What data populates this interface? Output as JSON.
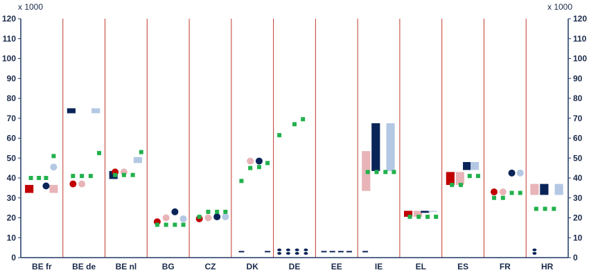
{
  "colors": {
    "axis": "#1f3864",
    "separator": "#c0392b",
    "dark_red": "#c00000",
    "light_red": "#e8b4b8",
    "dark_blue": "#0a2458",
    "light_blue": "#b4c8e4",
    "green": "#22b14c"
  },
  "chart_data": {
    "type": "scatter",
    "unit_left": "x 1000",
    "unit_right": "x 1000",
    "ylim": [
      0,
      120
    ],
    "yticks": [
      0,
      10,
      20,
      30,
      40,
      50,
      60,
      70,
      80,
      90,
      100,
      110,
      120
    ],
    "categories": [
      "BE fr",
      "BE de",
      "BE nl",
      "BG",
      "CZ",
      "DK",
      "DE",
      "EE",
      "IE",
      "EL",
      "ES",
      "FR",
      "HR"
    ],
    "ranges": [
      {
        "cat": 0,
        "pos": "left",
        "shade": "dark_red",
        "low": 32.5,
        "high": 36.5
      },
      {
        "cat": 0,
        "pos": "right",
        "shade": "light_red",
        "low": 32.5,
        "high": 36.5
      },
      {
        "cat": 1,
        "pos": "left",
        "shade": "dark_blue",
        "low": 72.5,
        "high": 75
      },
      {
        "cat": 1,
        "pos": "right",
        "shade": "light_blue",
        "low": 72.5,
        "high": 75
      },
      {
        "cat": 2,
        "pos": "left",
        "shade": "dark_blue",
        "low": 39.5,
        "high": 43.5
      },
      {
        "cat": 2,
        "pos": "right",
        "shade": "light_blue",
        "low": 47.5,
        "high": 50.5
      },
      {
        "cat": 8,
        "pos": "left",
        "shade": "light_red",
        "low": 33.5,
        "high": 53.5
      },
      {
        "cat": 8,
        "pos": "center",
        "shade": "dark_blue",
        "low": 43.5,
        "high": 67.5
      },
      {
        "cat": 8,
        "pos": "right",
        "shade": "light_blue",
        "low": 43.5,
        "high": 67.5
      },
      {
        "cat": 9,
        "pos": "left",
        "shade": "dark_red",
        "low": 20.5,
        "high": 23.5
      },
      {
        "cat": 9,
        "pos": "center",
        "shade": "light_red",
        "low": 20.5,
        "high": 23.5
      },
      {
        "cat": 9,
        "pos": "center2",
        "shade": "dark_blue",
        "low": 22.5,
        "high": 23.5
      },
      {
        "cat": 9,
        "pos": "right",
        "shade": "light_blue",
        "low": 23,
        "high": 23.5
      },
      {
        "cat": 10,
        "pos": "left",
        "shade": "dark_red",
        "low": 36.5,
        "high": 43
      },
      {
        "cat": 10,
        "pos": "center",
        "shade": "light_red",
        "low": 36.5,
        "high": 43
      },
      {
        "cat": 10,
        "pos": "center2",
        "shade": "dark_blue",
        "low": 44,
        "high": 48
      },
      {
        "cat": 10,
        "pos": "right",
        "shade": "light_blue",
        "low": 44,
        "high": 48
      },
      {
        "cat": 12,
        "pos": "left",
        "shade": "light_red",
        "low": 31.5,
        "high": 37
      },
      {
        "cat": 12,
        "pos": "center",
        "shade": "dark_blue",
        "low": 31.5,
        "high": 37
      },
      {
        "cat": 12,
        "pos": "right",
        "shade": "light_blue",
        "low": 31.5,
        "high": 37
      }
    ],
    "points": [
      {
        "cat": 0,
        "off": -0.26,
        "y": 40,
        "shape": "square",
        "shade": "green"
      },
      {
        "cat": 0,
        "off": -0.07,
        "y": 40,
        "shape": "square",
        "shade": "green"
      },
      {
        "cat": 0,
        "off": 0.1,
        "y": 40,
        "shape": "square",
        "shade": "green"
      },
      {
        "cat": 0,
        "off": 0.28,
        "y": 51,
        "shape": "square",
        "shade": "green"
      },
      {
        "cat": 0,
        "off": 0.1,
        "y": 36,
        "shape": "circle",
        "shade": "dark_blue"
      },
      {
        "cat": 0,
        "off": 0.28,
        "y": 45.5,
        "shape": "circle",
        "shade": "light_blue"
      },
      {
        "cat": 1,
        "off": -0.26,
        "y": 37,
        "shape": "circle",
        "shade": "dark_red"
      },
      {
        "cat": 1,
        "off": -0.05,
        "y": 37,
        "shape": "circle",
        "shade": "light_red"
      },
      {
        "cat": 1,
        "off": -0.26,
        "y": 41,
        "shape": "square",
        "shade": "green"
      },
      {
        "cat": 1,
        "off": -0.05,
        "y": 41,
        "shape": "square",
        "shade": "green"
      },
      {
        "cat": 1,
        "off": 0.16,
        "y": 41,
        "shape": "square",
        "shade": "green"
      },
      {
        "cat": 1,
        "off": 0.36,
        "y": 52.5,
        "shape": "square",
        "shade": "green"
      },
      {
        "cat": 2,
        "off": -0.26,
        "y": 43,
        "shape": "circle",
        "shade": "dark_red"
      },
      {
        "cat": 2,
        "off": -0.05,
        "y": 43,
        "shape": "circle",
        "shade": "light_red"
      },
      {
        "cat": 2,
        "off": -0.26,
        "y": 41.5,
        "shape": "square",
        "shade": "green"
      },
      {
        "cat": 2,
        "off": -0.05,
        "y": 41.5,
        "shape": "square",
        "shade": "green"
      },
      {
        "cat": 2,
        "off": 0.16,
        "y": 41.5,
        "shape": "square",
        "shade": "green"
      },
      {
        "cat": 2,
        "off": 0.36,
        "y": 53,
        "shape": "square",
        "shade": "green"
      },
      {
        "cat": 3,
        "off": -0.26,
        "y": 18,
        "shape": "circle",
        "shade": "dark_red"
      },
      {
        "cat": 3,
        "off": -0.05,
        "y": 20,
        "shape": "circle",
        "shade": "light_red"
      },
      {
        "cat": 3,
        "off": 0.16,
        "y": 23,
        "shape": "circle",
        "shade": "dark_blue"
      },
      {
        "cat": 3,
        "off": 0.36,
        "y": 19.5,
        "shape": "circle",
        "shade": "light_blue"
      },
      {
        "cat": 3,
        "off": -0.26,
        "y": 16.5,
        "shape": "square",
        "shade": "green"
      },
      {
        "cat": 3,
        "off": -0.05,
        "y": 16.5,
        "shape": "square",
        "shade": "green"
      },
      {
        "cat": 3,
        "off": 0.16,
        "y": 16.5,
        "shape": "square",
        "shade": "green"
      },
      {
        "cat": 3,
        "off": 0.36,
        "y": 16.5,
        "shape": "square",
        "shade": "green"
      },
      {
        "cat": 4,
        "off": -0.26,
        "y": 19.5,
        "shape": "circle",
        "shade": "dark_red"
      },
      {
        "cat": 4,
        "off": -0.05,
        "y": 20,
        "shape": "circle",
        "shade": "light_red"
      },
      {
        "cat": 4,
        "off": 0.16,
        "y": 20.5,
        "shape": "circle",
        "shade": "dark_blue"
      },
      {
        "cat": 4,
        "off": 0.36,
        "y": 20.5,
        "shape": "circle",
        "shade": "light_blue"
      },
      {
        "cat": 4,
        "off": -0.26,
        "y": 20.5,
        "shape": "square",
        "shade": "green"
      },
      {
        "cat": 4,
        "off": -0.05,
        "y": 23,
        "shape": "square",
        "shade": "green"
      },
      {
        "cat": 4,
        "off": 0.16,
        "y": 23,
        "shape": "square",
        "shade": "green"
      },
      {
        "cat": 4,
        "off": 0.36,
        "y": 23,
        "shape": "square",
        "shade": "green"
      },
      {
        "cat": 5,
        "off": -0.05,
        "y": 48.5,
        "shape": "circle",
        "shade": "light_red"
      },
      {
        "cat": 5,
        "off": 0.16,
        "y": 48.5,
        "shape": "circle",
        "shade": "dark_blue"
      },
      {
        "cat": 5,
        "off": -0.26,
        "y": 38.5,
        "shape": "square",
        "shade": "green"
      },
      {
        "cat": 5,
        "off": -0.05,
        "y": 45,
        "shape": "square",
        "shade": "green"
      },
      {
        "cat": 5,
        "off": 0.16,
        "y": 45.5,
        "shape": "square",
        "shade": "green"
      },
      {
        "cat": 5,
        "off": 0.36,
        "y": 47.5,
        "shape": "square",
        "shade": "green"
      },
      {
        "cat": 5,
        "off": -0.26,
        "y": 3,
        "shape": "dash",
        "shade": "dark_blue"
      },
      {
        "cat": 5,
        "off": 0.36,
        "y": 3,
        "shape": "dash",
        "shade": "dark_blue"
      },
      {
        "cat": 6,
        "off": -0.36,
        "y": 61.5,
        "shape": "square",
        "shade": "green"
      },
      {
        "cat": 6,
        "off": 0.0,
        "y": 67,
        "shape": "square",
        "shade": "green"
      },
      {
        "cat": 6,
        "off": 0.2,
        "y": 69.5,
        "shape": "square",
        "shade": "green"
      },
      {
        "cat": 6,
        "off": -0.36,
        "y": 3,
        "shape": "dots",
        "shade": "dark_blue"
      },
      {
        "cat": 6,
        "off": -0.15,
        "y": 3,
        "shape": "dots",
        "shade": "dark_blue"
      },
      {
        "cat": 6,
        "off": 0.06,
        "y": 3,
        "shape": "dots",
        "shade": "dark_blue"
      },
      {
        "cat": 6,
        "off": 0.27,
        "y": 3,
        "shape": "dots",
        "shade": "dark_blue"
      },
      {
        "cat": 7,
        "off": -0.3,
        "y": 3,
        "shape": "dash",
        "shade": "dark_blue"
      },
      {
        "cat": 7,
        "off": -0.1,
        "y": 3,
        "shape": "dash",
        "shade": "dark_blue"
      },
      {
        "cat": 7,
        "off": 0.1,
        "y": 3,
        "shape": "dash",
        "shade": "dark_blue"
      },
      {
        "cat": 7,
        "off": 0.3,
        "y": 3,
        "shape": "dash",
        "shade": "dark_blue"
      },
      {
        "cat": 8,
        "off": -0.32,
        "y": 3,
        "shape": "dash",
        "shade": "dark_blue"
      },
      {
        "cat": 8,
        "off": -0.26,
        "y": 43,
        "shape": "square",
        "shade": "green"
      },
      {
        "cat": 8,
        "off": -0.05,
        "y": 43,
        "shape": "square",
        "shade": "green"
      },
      {
        "cat": 8,
        "off": 0.16,
        "y": 43,
        "shape": "square",
        "shade": "green"
      },
      {
        "cat": 8,
        "off": 0.36,
        "y": 43,
        "shape": "square",
        "shade": "green"
      },
      {
        "cat": 9,
        "off": -0.26,
        "y": 20.5,
        "shape": "square",
        "shade": "green"
      },
      {
        "cat": 9,
        "off": -0.05,
        "y": 20.5,
        "shape": "square",
        "shade": "green"
      },
      {
        "cat": 9,
        "off": 0.16,
        "y": 20.5,
        "shape": "square",
        "shade": "green"
      },
      {
        "cat": 9,
        "off": 0.36,
        "y": 20.5,
        "shape": "square",
        "shade": "green"
      },
      {
        "cat": 10,
        "off": -0.26,
        "y": 36.5,
        "shape": "square",
        "shade": "green"
      },
      {
        "cat": 10,
        "off": -0.05,
        "y": 36.5,
        "shape": "square",
        "shade": "green"
      },
      {
        "cat": 10,
        "off": 0.16,
        "y": 41,
        "shape": "square",
        "shade": "green"
      },
      {
        "cat": 10,
        "off": 0.36,
        "y": 41,
        "shape": "square",
        "shade": "green"
      },
      {
        "cat": 11,
        "off": -0.26,
        "y": 33,
        "shape": "circle",
        "shade": "dark_red"
      },
      {
        "cat": 11,
        "off": -0.05,
        "y": 33,
        "shape": "circle",
        "shade": "light_red"
      },
      {
        "cat": 11,
        "off": 0.16,
        "y": 42.5,
        "shape": "circle",
        "shade": "dark_blue"
      },
      {
        "cat": 11,
        "off": 0.36,
        "y": 42.5,
        "shape": "circle",
        "shade": "light_blue"
      },
      {
        "cat": 11,
        "off": -0.26,
        "y": 30,
        "shape": "square",
        "shade": "green"
      },
      {
        "cat": 11,
        "off": -0.05,
        "y": 30,
        "shape": "square",
        "shade": "green"
      },
      {
        "cat": 11,
        "off": 0.16,
        "y": 32.5,
        "shape": "square",
        "shade": "green"
      },
      {
        "cat": 11,
        "off": 0.36,
        "y": 32.5,
        "shape": "square",
        "shade": "green"
      },
      {
        "cat": 12,
        "off": -0.26,
        "y": 24.5,
        "shape": "square",
        "shade": "green"
      },
      {
        "cat": 12,
        "off": -0.05,
        "y": 24.5,
        "shape": "square",
        "shade": "green"
      },
      {
        "cat": 12,
        "off": 0.16,
        "y": 24.5,
        "shape": "square",
        "shade": "green"
      },
      {
        "cat": 12,
        "off": -0.3,
        "y": 3,
        "shape": "dots",
        "shade": "dark_blue"
      }
    ]
  }
}
